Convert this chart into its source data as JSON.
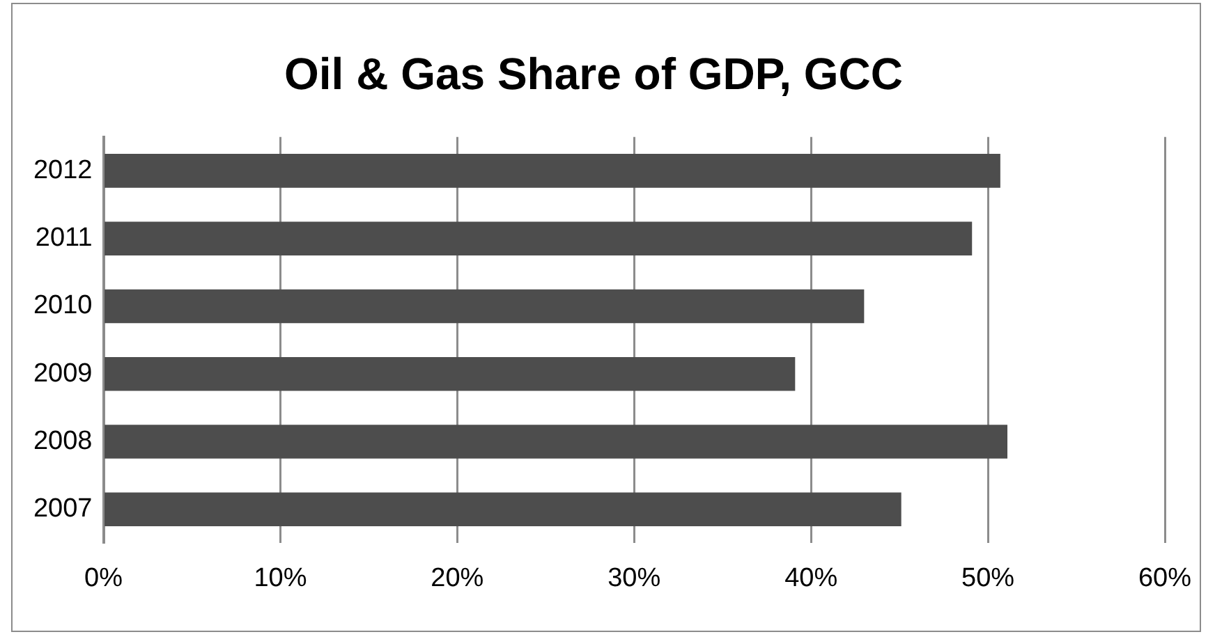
{
  "chart_data": {
    "type": "bar",
    "orientation": "horizontal",
    "title": "Oil & Gas Share of GDP, GCC",
    "categories": [
      "2012",
      "2011",
      "2010",
      "2009",
      "2008",
      "2007"
    ],
    "values": [
      50.7,
      49.1,
      43.0,
      39.1,
      51.1,
      45.1
    ],
    "color": "#4d4d4d",
    "xlim": [
      0,
      60
    ],
    "xticks": [
      {
        "value": 0,
        "label": "0%"
      },
      {
        "value": 10,
        "label": "10%"
      },
      {
        "value": 20,
        "label": "20%"
      },
      {
        "value": 30,
        "label": "30%"
      },
      {
        "value": 40,
        "label": "40%"
      },
      {
        "value": 50,
        "label": "50%"
      },
      {
        "value": 60,
        "label": "60%"
      }
    ],
    "grid": "x",
    "legend": false
  }
}
